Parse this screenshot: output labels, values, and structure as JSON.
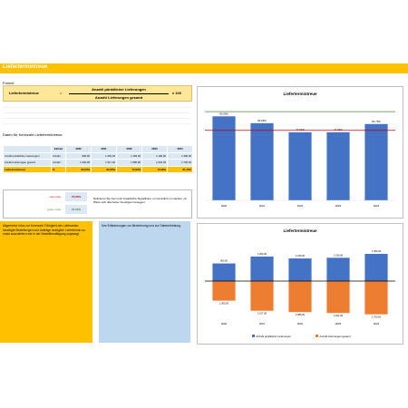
{
  "page": {
    "title": "Liefertermintreue",
    "formel_label": "Formel",
    "formula": {
      "lhs": "Liefertermintreue",
      "equals": "=",
      "numerator": "Anzahl pünktlicher Lieferungen",
      "denominator": "Anzahl Lieferungen gesamt",
      "multiplier": "x 100"
    },
    "data_label": "Daten für Kennzahl Liefertermintreue",
    "table": {
      "headers": [
        "",
        "Einheit",
        "2020",
        "2021",
        "2022",
        "2023",
        "2024"
      ],
      "rows": [
        [
          "Anzahl pünktlicher Lieferungen",
          "Anzahl",
          "900,00",
          "1.254,00",
          "1.156,00",
          "1.190,00",
          "1.390,00"
        ],
        [
          "Anzahl Lieferungen gesamt",
          "Anzahl",
          "1.000,00",
          "1.517,00",
          "1.585,00",
          "1.631,00",
          "1.700,00"
        ],
        [
          "Liefertermintreue",
          "%",
          "90,00%",
          "82,66%",
          "72,93%",
          "72,96%",
          "81,76%"
        ]
      ]
    },
    "ziel": {
      "rot_label": "rote Linie",
      "rot_value": "75,00%",
      "gruen_label": "grüne Linie",
      "gruen_value": "95,00%",
      "note": "Definieren Sie hier noch zusätzliche Signallinien, um kenntlich zu machen, ob Werte sich über/unter Sonstigem bewegen."
    },
    "info_text": "Allgemeine Infos zur Kennzahl: Fähigkeit des Lieferanten, benötigte Bestellungen und Aufträge bezüglich Liefertermin so exakt auszuliefern wie in der Bestellbestätigung zugesagt.",
    "hint_text": "Ihre Erläuterungen zur Berechnung und zur Datenerhebung"
  },
  "chart_data": [
    {
      "type": "bar",
      "title": "Liefertermintreue",
      "categories": [
        "2020",
        "2021",
        "2022",
        "2023",
        "2024"
      ],
      "values": [
        90.0,
        82.66,
        72.93,
        72.96,
        81.76
      ],
      "value_labels": [
        "90,00%",
        "82,66%",
        "72,93%",
        "72,96%",
        "81,76%"
      ],
      "ylim": [
        0,
        100
      ],
      "reference_lines": [
        {
          "value": 75,
          "color": "#c00000"
        },
        {
          "value": 95,
          "color": "#548235"
        }
      ],
      "colors": {
        "bar": "#4472c4"
      }
    },
    {
      "type": "bar",
      "title": "Liefertermintreue",
      "categories": [
        "2020",
        "2021",
        "2022",
        "2023",
        "2024"
      ],
      "series": [
        {
          "name": "Anzahl pünktlicher Lieferungen",
          "values": [
            900,
            1254,
            1156,
            1190,
            1390
          ],
          "labels": [
            "900,00",
            "1.254,00",
            "1.156,00",
            "1.190,00",
            "1.390,00"
          ],
          "color": "#4472c4"
        },
        {
          "name": "Anzahl Lieferungen gesamt",
          "values": [
            -1000,
            -1517,
            -1585,
            -1631,
            -1700
          ],
          "labels": [
            "1.000,00",
            "1.517,00",
            "1.585,00",
            "1.631,00",
            "1.700,00"
          ],
          "color": "#ed7d31"
        }
      ],
      "legend_position": "bottom"
    }
  ]
}
